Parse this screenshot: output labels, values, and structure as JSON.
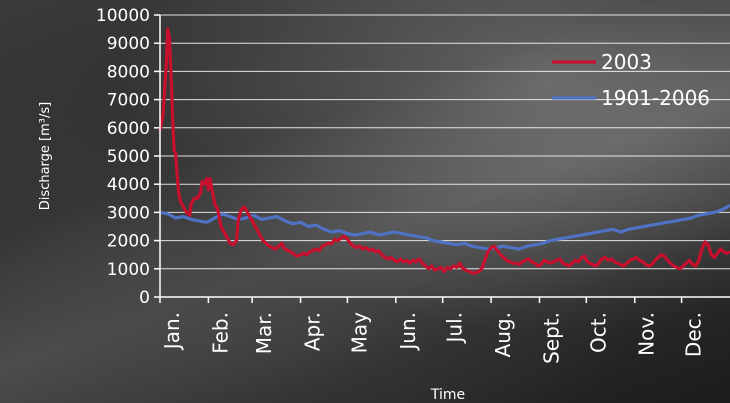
{
  "chart_data": {
    "type": "line",
    "xlabel": "Time",
    "ylabel": "Discharge [m³/s]",
    "ylim": [
      0,
      10000
    ],
    "y_ticks": [
      0,
      1000,
      2000,
      3000,
      4000,
      5000,
      6000,
      7000,
      8000,
      9000,
      10000
    ],
    "x_range": [
      0,
      365
    ],
    "grid": "horizontal",
    "legend_position": "top-right",
    "months": [
      {
        "label": "Jan.",
        "day": 0
      },
      {
        "label": "Feb.",
        "day": 31
      },
      {
        "label": "Mar.",
        "day": 59
      },
      {
        "label": "Apr.",
        "day": 90
      },
      {
        "label": "May",
        "day": 120
      },
      {
        "label": "Jun.",
        "day": 151
      },
      {
        "label": "Jul.",
        "day": 181
      },
      {
        "label": "Aug.",
        "day": 212
      },
      {
        "label": "Sept.",
        "day": 243
      },
      {
        "label": "Oct.",
        "day": 273
      },
      {
        "label": "Nov.",
        "day": 304
      },
      {
        "label": "Dec.",
        "day": 334
      }
    ],
    "series": [
      {
        "name": "2003",
        "color": "#c8102e",
        "points": [
          [
            0,
            5900
          ],
          [
            2,
            6500
          ],
          [
            4,
            8200
          ],
          [
            5,
            9500
          ],
          [
            6,
            9200
          ],
          [
            7,
            8000
          ],
          [
            8,
            6500
          ],
          [
            9,
            5200
          ],
          [
            10,
            5100
          ],
          [
            11,
            4300
          ],
          [
            12,
            3700
          ],
          [
            13,
            3400
          ],
          [
            15,
            3200
          ],
          [
            17,
            3000
          ],
          [
            19,
            2900
          ],
          [
            20,
            3300
          ],
          [
            22,
            3500
          ],
          [
            24,
            3500
          ],
          [
            26,
            3700
          ],
          [
            27,
            4100
          ],
          [
            29,
            4000
          ],
          [
            30,
            4200
          ],
          [
            31,
            3800
          ],
          [
            32,
            4200
          ],
          [
            34,
            3600
          ],
          [
            35,
            3300
          ],
          [
            37,
            3100
          ],
          [
            39,
            2500
          ],
          [
            41,
            2300
          ],
          [
            43,
            2100
          ],
          [
            45,
            1900
          ],
          [
            47,
            1850
          ],
          [
            49,
            2000
          ],
          [
            50,
            2700
          ],
          [
            52,
            3100
          ],
          [
            54,
            3200
          ],
          [
            56,
            3000
          ],
          [
            58,
            2800
          ],
          [
            60,
            2600
          ],
          [
            62,
            2400
          ],
          [
            64,
            2200
          ],
          [
            66,
            2000
          ],
          [
            68,
            1900
          ],
          [
            70,
            1800
          ],
          [
            72,
            1750
          ],
          [
            74,
            1700
          ],
          [
            76,
            1800
          ],
          [
            78,
            1900
          ],
          [
            80,
            1700
          ],
          [
            82,
            1650
          ],
          [
            84,
            1600
          ],
          [
            86,
            1500
          ],
          [
            88,
            1450
          ],
          [
            90,
            1500
          ],
          [
            92,
            1550
          ],
          [
            94,
            1500
          ],
          [
            96,
            1600
          ],
          [
            98,
            1650
          ],
          [
            100,
            1700
          ],
          [
            102,
            1650
          ],
          [
            104,
            1800
          ],
          [
            106,
            1850
          ],
          [
            108,
            1900
          ],
          [
            110,
            1900
          ],
          [
            112,
            2050
          ],
          [
            114,
            2000
          ],
          [
            116,
            2100
          ],
          [
            118,
            2150
          ],
          [
            120,
            2050
          ],
          [
            122,
            1900
          ],
          [
            124,
            1800
          ],
          [
            126,
            1750
          ],
          [
            128,
            1800
          ],
          [
            130,
            1700
          ],
          [
            132,
            1750
          ],
          [
            134,
            1650
          ],
          [
            136,
            1700
          ],
          [
            138,
            1600
          ],
          [
            140,
            1650
          ],
          [
            142,
            1500
          ],
          [
            144,
            1400
          ],
          [
            146,
            1350
          ],
          [
            148,
            1400
          ],
          [
            150,
            1300
          ],
          [
            152,
            1250
          ],
          [
            154,
            1350
          ],
          [
            156,
            1250
          ],
          [
            158,
            1300
          ],
          [
            160,
            1200
          ],
          [
            162,
            1300
          ],
          [
            164,
            1250
          ],
          [
            166,
            1350
          ],
          [
            168,
            1200
          ],
          [
            170,
            1100
          ],
          [
            172,
            1000
          ],
          [
            174,
            1100
          ],
          [
            176,
            950
          ],
          [
            178,
            1000
          ],
          [
            180,
            1050
          ],
          [
            182,
            900
          ],
          [
            184,
            1050
          ],
          [
            186,
            1000
          ],
          [
            188,
            1100
          ],
          [
            190,
            1050
          ],
          [
            192,
            1200
          ],
          [
            194,
            1000
          ],
          [
            196,
            950
          ],
          [
            198,
            900
          ],
          [
            200,
            850
          ],
          [
            202,
            850
          ],
          [
            204,
            900
          ],
          [
            206,
            1000
          ],
          [
            208,
            1300
          ],
          [
            210,
            1600
          ],
          [
            212,
            1750
          ],
          [
            214,
            1800
          ],
          [
            216,
            1650
          ],
          [
            218,
            1500
          ],
          [
            220,
            1400
          ],
          [
            222,
            1300
          ],
          [
            224,
            1250
          ],
          [
            226,
            1200
          ],
          [
            228,
            1200
          ],
          [
            230,
            1150
          ],
          [
            232,
            1250
          ],
          [
            234,
            1300
          ],
          [
            236,
            1350
          ],
          [
            238,
            1250
          ],
          [
            240,
            1200
          ],
          [
            242,
            1100
          ],
          [
            244,
            1150
          ],
          [
            246,
            1300
          ],
          [
            248,
            1250
          ],
          [
            250,
            1200
          ],
          [
            252,
            1250
          ],
          [
            254,
            1300
          ],
          [
            256,
            1350
          ],
          [
            258,
            1200
          ],
          [
            260,
            1150
          ],
          [
            262,
            1100
          ],
          [
            264,
            1200
          ],
          [
            266,
            1300
          ],
          [
            268,
            1250
          ],
          [
            270,
            1400
          ],
          [
            272,
            1450
          ],
          [
            273,
            1300
          ],
          [
            275,
            1200
          ],
          [
            277,
            1150
          ],
          [
            279,
            1100
          ],
          [
            281,
            1200
          ],
          [
            283,
            1350
          ],
          [
            285,
            1400
          ],
          [
            287,
            1300
          ],
          [
            289,
            1350
          ],
          [
            291,
            1250
          ],
          [
            293,
            1200
          ],
          [
            295,
            1150
          ],
          [
            297,
            1100
          ],
          [
            299,
            1200
          ],
          [
            301,
            1300
          ],
          [
            303,
            1350
          ],
          [
            305,
            1400
          ],
          [
            307,
            1300
          ],
          [
            309,
            1250
          ],
          [
            311,
            1150
          ],
          [
            313,
            1100
          ],
          [
            315,
            1150
          ],
          [
            317,
            1300
          ],
          [
            319,
            1400
          ],
          [
            321,
            1500
          ],
          [
            323,
            1450
          ],
          [
            325,
            1300
          ],
          [
            327,
            1200
          ],
          [
            329,
            1100
          ],
          [
            331,
            1050
          ],
          [
            333,
            1000
          ],
          [
            335,
            1100
          ],
          [
            337,
            1200
          ],
          [
            339,
            1300
          ],
          [
            341,
            1150
          ],
          [
            343,
            1100
          ],
          [
            345,
            1300
          ],
          [
            347,
            1700
          ],
          [
            349,
            1950
          ],
          [
            351,
            1850
          ],
          [
            353,
            1500
          ],
          [
            355,
            1400
          ],
          [
            357,
            1550
          ],
          [
            359,
            1700
          ],
          [
            361,
            1600
          ],
          [
            363,
            1550
          ],
          [
            365,
            1600
          ]
        ]
      },
      {
        "name": "1901-2006",
        "color": "#4f72c4",
        "points": [
          [
            0,
            3000
          ],
          [
            5,
            2950
          ],
          [
            10,
            2800
          ],
          [
            15,
            2850
          ],
          [
            20,
            2750
          ],
          [
            25,
            2700
          ],
          [
            30,
            2650
          ],
          [
            35,
            2800
          ],
          [
            40,
            2950
          ],
          [
            45,
            2850
          ],
          [
            50,
            2750
          ],
          [
            55,
            2800
          ],
          [
            60,
            2900
          ],
          [
            65,
            2750
          ],
          [
            70,
            2800
          ],
          [
            75,
            2850
          ],
          [
            80,
            2700
          ],
          [
            85,
            2600
          ],
          [
            90,
            2650
          ],
          [
            95,
            2500
          ],
          [
            100,
            2550
          ],
          [
            105,
            2400
          ],
          [
            110,
            2300
          ],
          [
            115,
            2350
          ],
          [
            120,
            2250
          ],
          [
            125,
            2200
          ],
          [
            130,
            2250
          ],
          [
            135,
            2300
          ],
          [
            140,
            2200
          ],
          [
            145,
            2250
          ],
          [
            150,
            2300
          ],
          [
            155,
            2250
          ],
          [
            160,
            2200
          ],
          [
            165,
            2150
          ],
          [
            170,
            2100
          ],
          [
            175,
            2000
          ],
          [
            180,
            1950
          ],
          [
            185,
            1900
          ],
          [
            190,
            1850
          ],
          [
            195,
            1900
          ],
          [
            200,
            1800
          ],
          [
            205,
            1750
          ],
          [
            210,
            1700
          ],
          [
            215,
            1750
          ],
          [
            220,
            1800
          ],
          [
            225,
            1750
          ],
          [
            230,
            1700
          ],
          [
            235,
            1800
          ],
          [
            240,
            1850
          ],
          [
            245,
            1900
          ],
          [
            250,
            2000
          ],
          [
            255,
            2050
          ],
          [
            260,
            2100
          ],
          [
            265,
            2150
          ],
          [
            270,
            2200
          ],
          [
            275,
            2250
          ],
          [
            280,
            2300
          ],
          [
            285,
            2350
          ],
          [
            290,
            2400
          ],
          [
            295,
            2300
          ],
          [
            300,
            2400
          ],
          [
            305,
            2450
          ],
          [
            310,
            2500
          ],
          [
            315,
            2550
          ],
          [
            320,
            2600
          ],
          [
            325,
            2650
          ],
          [
            330,
            2700
          ],
          [
            335,
            2750
          ],
          [
            340,
            2800
          ],
          [
            345,
            2900
          ],
          [
            350,
            2950
          ],
          [
            355,
            3000
          ],
          [
            360,
            3100
          ],
          [
            365,
            3250
          ]
        ]
      }
    ]
  }
}
